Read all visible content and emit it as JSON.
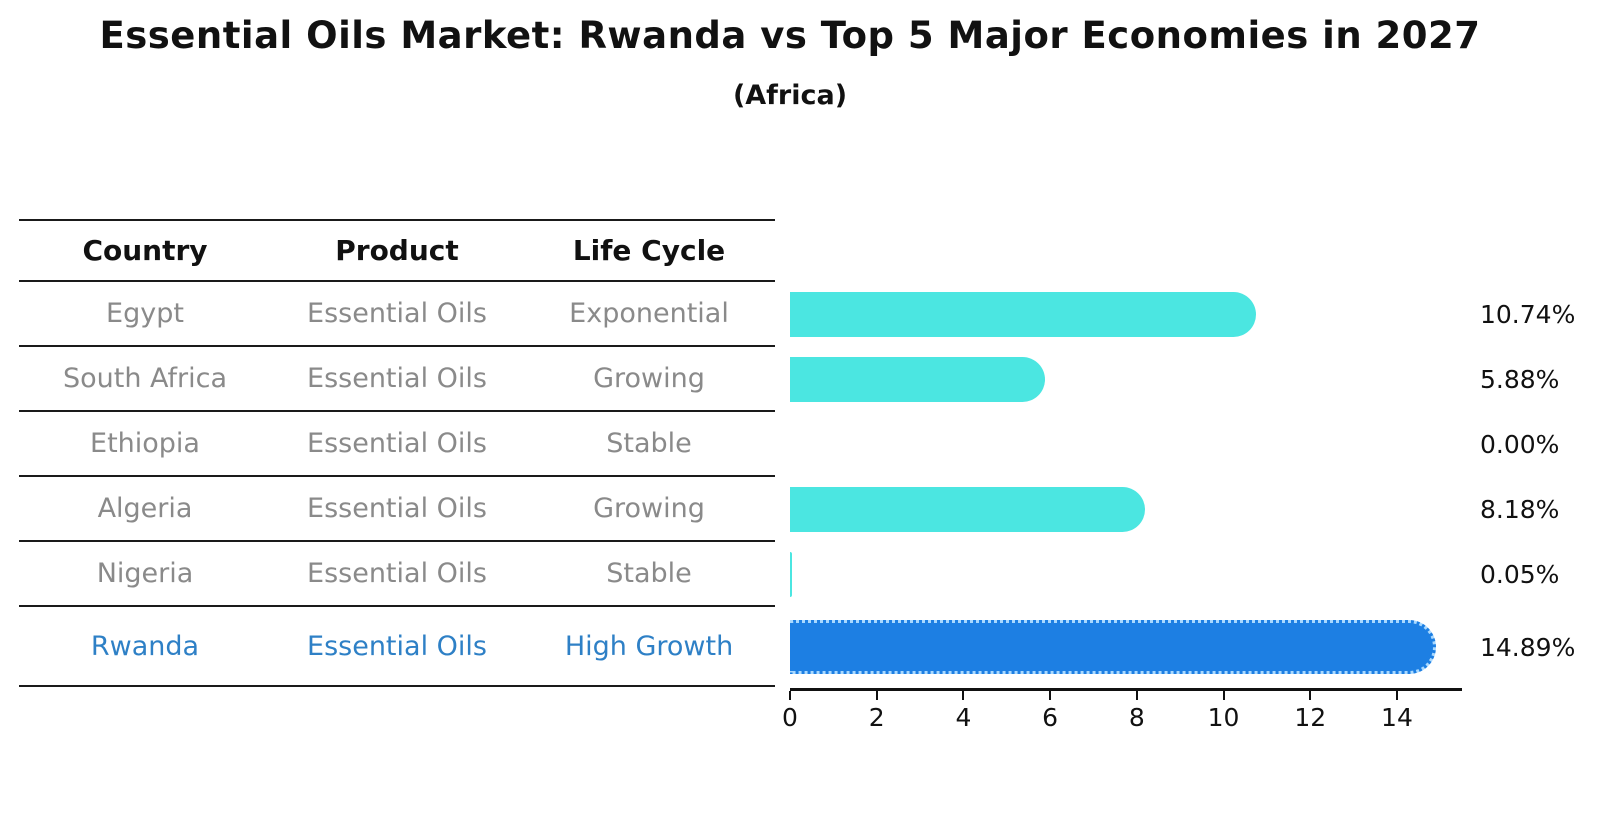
{
  "title": "Essential Oils Market: Rwanda vs Top 5 Major Economies in 2027",
  "subtitle": "(Africa)",
  "table": {
    "headers": [
      "Country",
      "Product",
      "Life Cycle"
    ],
    "rows": [
      {
        "country": "Egypt",
        "product": "Essential Oils",
        "life_cycle": "Exponential",
        "highlight": false
      },
      {
        "country": "South Africa",
        "product": "Essential Oils",
        "life_cycle": "Growing",
        "highlight": false
      },
      {
        "country": "Ethiopia",
        "product": "Essential Oils",
        "life_cycle": "Stable",
        "highlight": false
      },
      {
        "country": "Algeria",
        "product": "Essential Oils",
        "life_cycle": "Growing",
        "highlight": false
      },
      {
        "country": "Nigeria",
        "product": "Essential Oils",
        "life_cycle": "Stable",
        "highlight": false
      },
      {
        "country": "Rwanda",
        "product": "Essential Oils",
        "life_cycle": "High Growth",
        "highlight": true
      }
    ]
  },
  "chart_data": {
    "type": "bar",
    "orientation": "horizontal",
    "title": "Essential Oils Market: Rwanda vs Top 5 Major Economies in 2027",
    "subtitle": "(Africa)",
    "xlabel": "",
    "ylabel": "",
    "categories": [
      "Egypt",
      "South Africa",
      "Ethiopia",
      "Algeria",
      "Nigeria",
      "Rwanda"
    ],
    "values": [
      10.74,
      5.88,
      0.0,
      8.18,
      0.05,
      14.89
    ],
    "value_labels": [
      "10.74%",
      "5.88%",
      "0.00%",
      "8.18%",
      "0.05%",
      "14.89%"
    ],
    "xlim": [
      0,
      15.5
    ],
    "xticks": [
      0,
      2,
      4,
      6,
      8,
      10,
      12,
      14
    ],
    "grid": false,
    "legend": false,
    "colors": {
      "default_bar": "#4be6e1",
      "highlight_bar": "#1d7fe3",
      "highlight_bar_border": "#a9d9ff",
      "highlight_text": "#2e80c6",
      "table_text": "#8a8a8a",
      "header_text": "#111111",
      "axis": "#111111"
    }
  }
}
